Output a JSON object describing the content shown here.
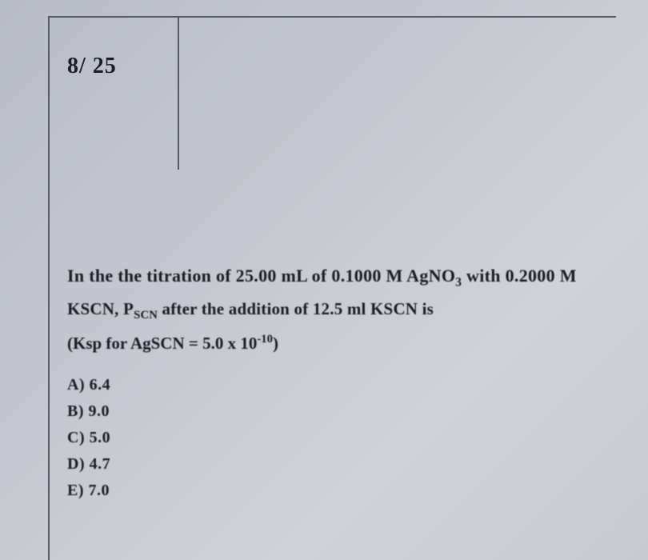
{
  "header": {
    "question_number": "8/ 25"
  },
  "question": {
    "line1_prefix": "In the the titration of 25.00 mL of 0.1000 M AgNO",
    "line1_sub": "3",
    "line1_suffix": " with 0.2000 M",
    "line2_prefix": "KSCN, P",
    "line2_sub": "SCN",
    "line2_suffix": " after the addition of 12.5 ml KSCN is",
    "line3_prefix": "(Ksp for AgSCN = 5.0 x 10",
    "line3_sup": "-10",
    "line3_suffix": ")"
  },
  "options": {
    "a": "A) 6.4",
    "b": "B) 9.0",
    "c": "C) 5.0",
    "d": "D) 4.7",
    "e": "E) 7.0"
  },
  "style": {
    "text_color": "#1a1d25",
    "border_color": "#555a65",
    "bg_start": "#b8bcc5",
    "bg_end": "#c8cad0"
  }
}
